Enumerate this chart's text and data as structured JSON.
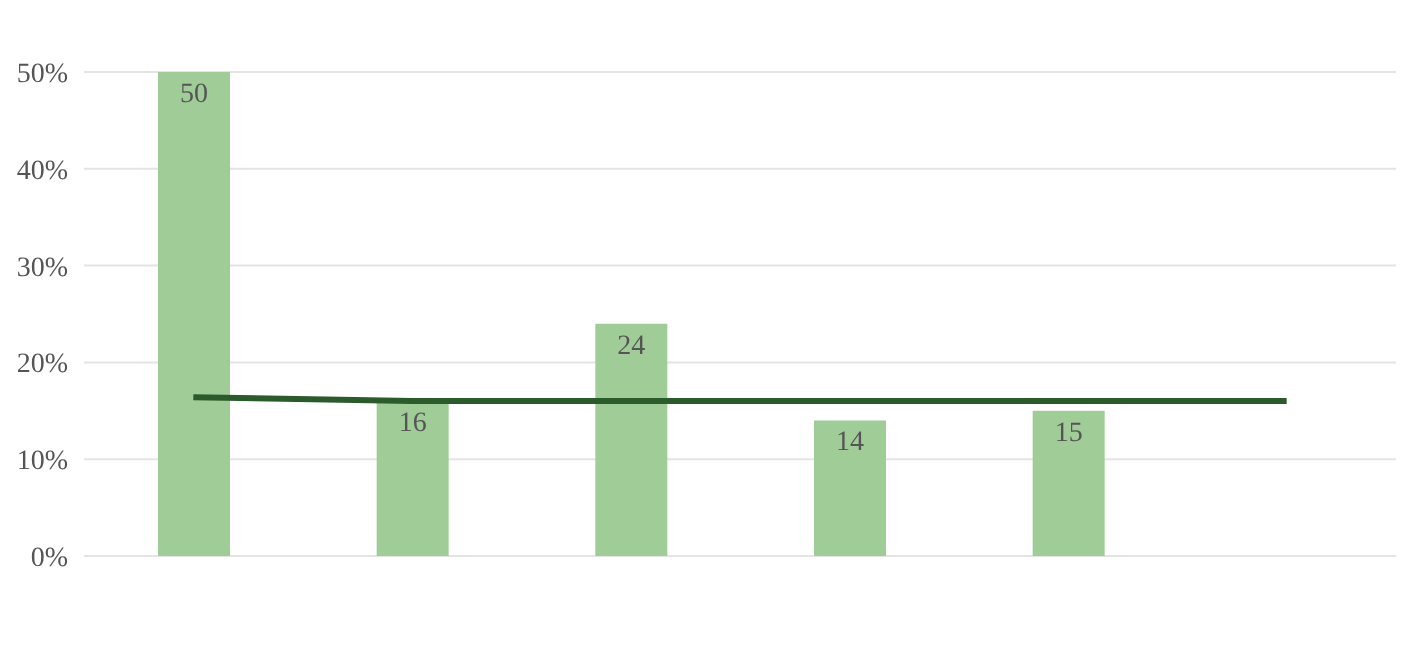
{
  "chart_data": {
    "type": "bar",
    "categories": [
      null,
      null,
      null,
      null,
      null,
      null
    ],
    "series": [
      {
        "color": "#a0cc98",
        "values": [
          50,
          16,
          24,
          14,
          15,
          null
        ],
        "value_labels": [
          "50",
          "16",
          "24",
          "14",
          "15",
          null
        ]
      },
      {
        "type": "line",
        "color": "#2b5a2b",
        "values": [
          16.4,
          16,
          16,
          16,
          16,
          16
        ]
      }
    ],
    "ylim": [
      0,
      50
    ],
    "yticks": [
      {
        "value": 0,
        "label": "0%"
      },
      {
        "value": 10,
        "label": "10%"
      },
      {
        "value": 20,
        "label": "20%"
      },
      {
        "value": 30,
        "label": "30%"
      },
      {
        "value": 40,
        "label": "40%"
      },
      {
        "value": 50,
        "label": "50%"
      }
    ],
    "grid": "y"
  }
}
